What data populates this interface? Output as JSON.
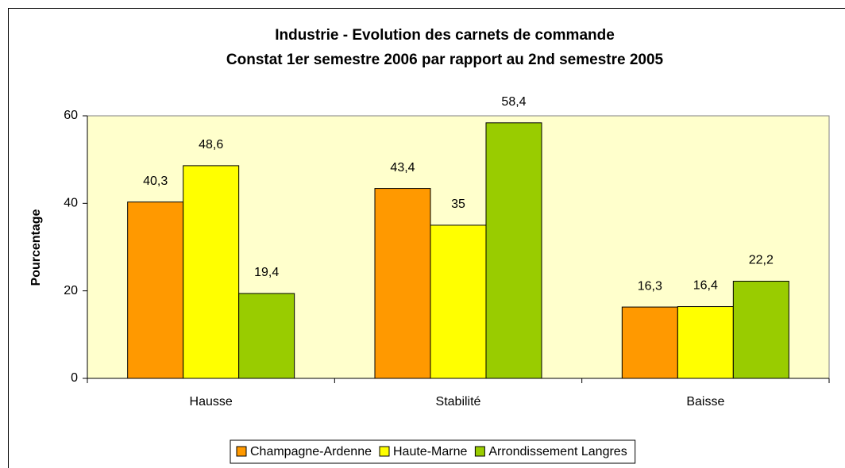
{
  "chart_data": {
    "type": "bar",
    "title": "Industrie - Evolution des carnets de commande",
    "subtitle": "Constat 1er semestre 2006 par rapport au 2nd semestre 2005",
    "y_label": "Pourcentage",
    "categories": [
      "Hausse",
      "Stabilité",
      "Baisse"
    ],
    "series": [
      {
        "name": "Champagne-Ardenne",
        "color": "#ff9900",
        "values": [
          40.3,
          43.4,
          16.3
        ],
        "value_labels": [
          "40,3",
          "43,4",
          "16,3"
        ]
      },
      {
        "name": "Haute-Marne",
        "color": "#ffff00",
        "values": [
          48.6,
          35,
          16.4
        ],
        "value_labels": [
          "48,6",
          "35",
          "16,4"
        ]
      },
      {
        "name": "Arrondissement Langres",
        "color": "#99cc00",
        "values": [
          19.4,
          58.4,
          22.2
        ],
        "value_labels": [
          "19,4",
          "58,4",
          "22,2"
        ]
      }
    ],
    "ylim": [
      0,
      60
    ],
    "yticks": [
      0,
      20,
      40,
      60
    ],
    "plot_background": "#ffffcc",
    "legend": "bottom"
  }
}
